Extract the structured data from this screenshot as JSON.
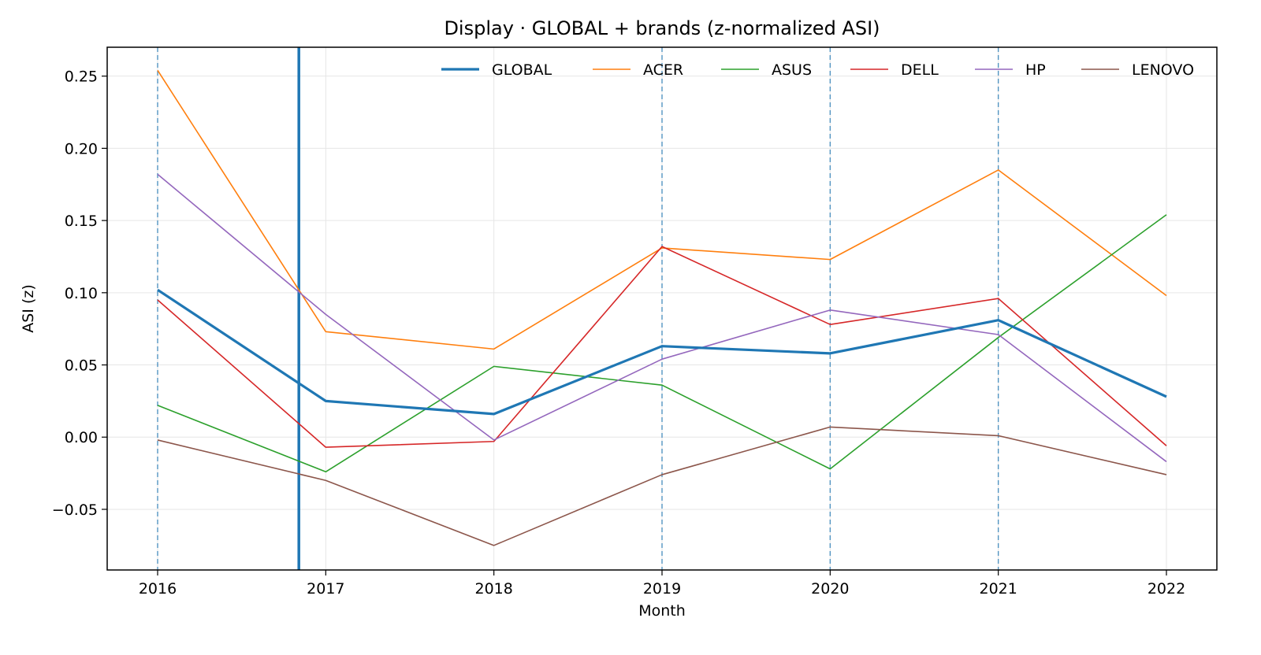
{
  "chart_data": {
    "type": "line",
    "title": "Display · GLOBAL + brands (z-normalized ASI)",
    "xlabel": "Month",
    "ylabel": "ASI (z)",
    "x": [
      "2016",
      "2017",
      "2018",
      "2019",
      "2020",
      "2021",
      "2022"
    ],
    "x_numeric": [
      2016,
      2017,
      2018,
      2019,
      2020,
      2021,
      2022
    ],
    "xlim": [
      2015.7,
      2022.3
    ],
    "ylim": [
      -0.092,
      0.27
    ],
    "yticks": [
      -0.05,
      0.0,
      0.05,
      0.1,
      0.15,
      0.2,
      0.25
    ],
    "ytick_labels": [
      "−0.05",
      "0.00",
      "0.05",
      "0.10",
      "0.15",
      "0.20",
      "0.25"
    ],
    "grid": true,
    "legend_position": "top-right",
    "event_lines_dashed": [
      2016,
      2019,
      2020,
      2021
    ],
    "event_line_solid": 2016.84,
    "event_line_color": "#1f77b4",
    "series": [
      {
        "name": "GLOBAL",
        "color": "#1f77b4",
        "width": 3.2,
        "values": [
          0.102,
          0.025,
          0.016,
          0.063,
          0.058,
          0.081,
          0.028
        ]
      },
      {
        "name": "ACER",
        "color": "#ff7f0e",
        "width": 1.6,
        "values": [
          0.254,
          0.073,
          0.061,
          0.131,
          0.123,
          0.185,
          0.098
        ]
      },
      {
        "name": "ASUS",
        "color": "#2ca02c",
        "width": 1.6,
        "values": [
          0.022,
          -0.024,
          0.049,
          0.036,
          -0.022,
          0.069,
          0.154
        ]
      },
      {
        "name": "DELL",
        "color": "#d62728",
        "width": 1.6,
        "values": [
          0.095,
          -0.007,
          -0.003,
          0.132,
          0.078,
          0.096,
          -0.006
        ]
      },
      {
        "name": "HP",
        "color": "#9467bd",
        "width": 1.6,
        "values": [
          0.182,
          0.085,
          -0.002,
          0.054,
          0.088,
          0.071,
          -0.017
        ]
      },
      {
        "name": "LENOVO",
        "color": "#8c564b",
        "width": 1.6,
        "values": [
          -0.002,
          -0.03,
          -0.075,
          -0.026,
          0.007,
          0.001,
          -0.026
        ]
      }
    ]
  }
}
